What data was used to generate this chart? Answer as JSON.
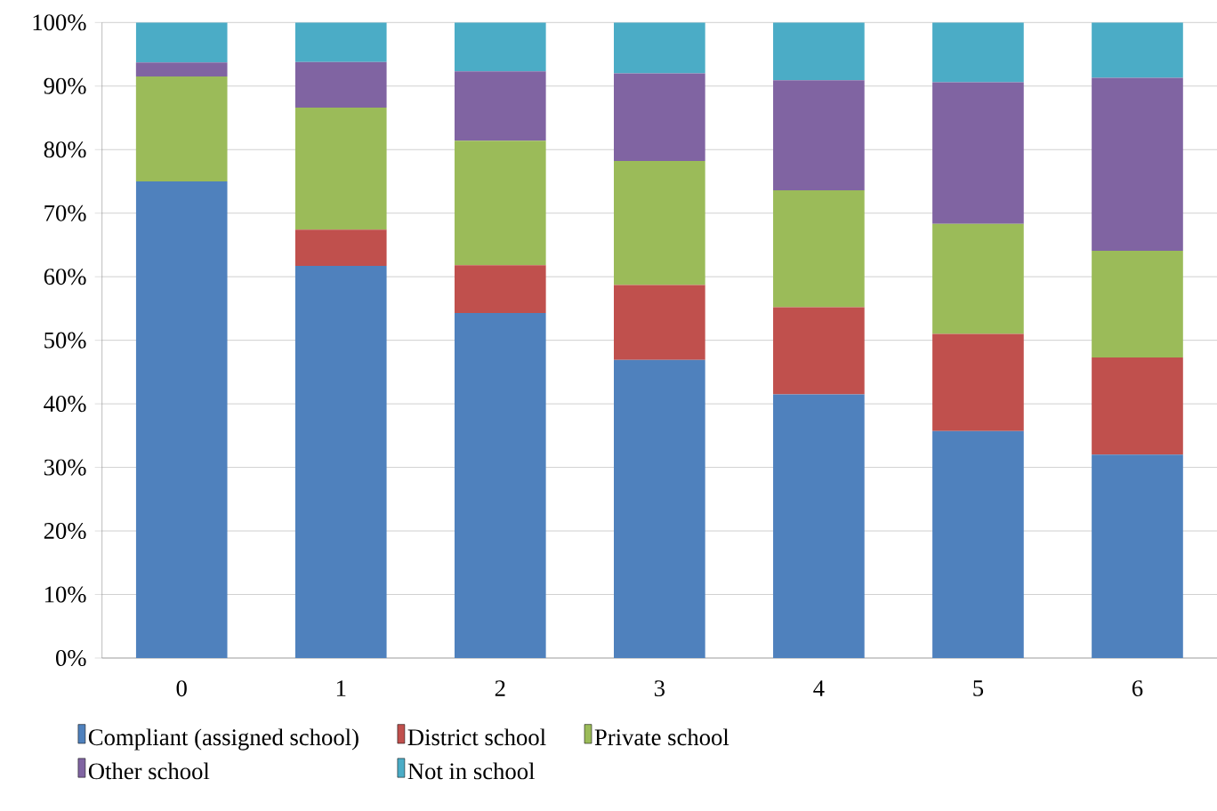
{
  "chart_data": {
    "type": "bar",
    "stacked": true,
    "categories": [
      "0",
      "1",
      "2",
      "3",
      "4",
      "5",
      "6"
    ],
    "series": [
      {
        "name": "Compliant (assigned school)",
        "color": "#4f81bd",
        "values": [
          75.0,
          61.7,
          54.3,
          46.9,
          41.5,
          35.7,
          32.0
        ]
      },
      {
        "name": "District school",
        "color": "#c0504d",
        "values": [
          0,
          5.7,
          7.5,
          11.8,
          13.7,
          15.3,
          15.3
        ]
      },
      {
        "name": "Private school",
        "color": "#9bbb59",
        "values": [
          16.5,
          19.2,
          19.6,
          19.5,
          18.4,
          17.3,
          16.8
        ]
      },
      {
        "name": "Other school",
        "color": "#8064a2",
        "values": [
          2.2,
          7.2,
          10.9,
          13.8,
          17.3,
          22.3,
          27.2
        ]
      },
      {
        "name": "Not in school",
        "color": "#4bacc6",
        "values": [
          6.3,
          6.2,
          7.7,
          8.0,
          9.1,
          9.4,
          8.7
        ]
      }
    ],
    "ylim": [
      0,
      100
    ],
    "yticks": [
      {
        "value": 0,
        "label": "0%"
      },
      {
        "value": 10,
        "label": "10%"
      },
      {
        "value": 20,
        "label": "20%"
      },
      {
        "value": 30,
        "label": "30%"
      },
      {
        "value": 40,
        "label": "40%"
      },
      {
        "value": 50,
        "label": "50%"
      },
      {
        "value": 60,
        "label": "60%"
      },
      {
        "value": 70,
        "label": "70%"
      },
      {
        "value": 80,
        "label": "80%"
      },
      {
        "value": 90,
        "label": "90%"
      },
      {
        "value": 100,
        "label": "100%"
      }
    ],
    "grid": "y",
    "legend": "bottom"
  }
}
